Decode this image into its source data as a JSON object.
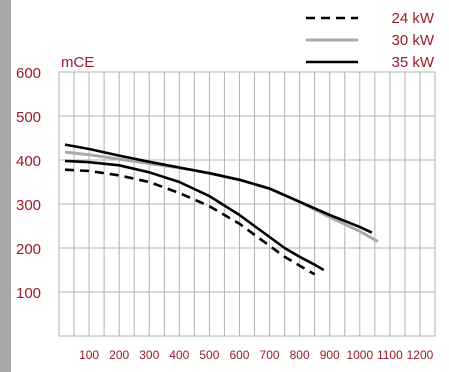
{
  "chart_data": {
    "type": "line",
    "title": "",
    "xlabel": "",
    "ylabel": "mCE",
    "xlim": [
      0,
      1250
    ],
    "ylim": [
      0,
      600
    ],
    "x_ticks": [
      100,
      200,
      300,
      400,
      500,
      600,
      700,
      800,
      900,
      1000,
      1100,
      1200
    ],
    "y_ticks": [
      100,
      200,
      300,
      400,
      500,
      600
    ],
    "grid": true,
    "legend_position": "top-right",
    "series": [
      {
        "name": "24 kW",
        "style": "dashed",
        "color": "#000000",
        "x": [
          20,
          100,
          200,
          300,
          400,
          500,
          600,
          650,
          700,
          750,
          800,
          850
        ],
        "y": [
          378,
          375,
          365,
          350,
          325,
          295,
          255,
          230,
          205,
          180,
          160,
          140
        ]
      },
      {
        "name": "30 kW",
        "style": "solid",
        "color": "#a9a9a9",
        "x": [
          20,
          100,
          200,
          300,
          400,
          500,
          600,
          700,
          800,
          900,
          1000,
          1060
        ],
        "y": [
          418,
          412,
          402,
          392,
          382,
          370,
          355,
          335,
          305,
          270,
          238,
          215
        ]
      },
      {
        "name": "35 kW",
        "style": "solid",
        "color": "#000000",
        "x": [
          20,
          100,
          200,
          300,
          400,
          500,
          600,
          700,
          800,
          900,
          1000,
          1040
        ],
        "y": [
          435,
          425,
          410,
          396,
          383,
          370,
          355,
          335,
          305,
          275,
          248,
          235
        ]
      },
      {
        "name": "",
        "style": "solid",
        "color": "#000000",
        "x": [
          20,
          100,
          200,
          300,
          400,
          500,
          600,
          650,
          700,
          750,
          800,
          850,
          880
        ],
        "y": [
          398,
          395,
          388,
          372,
          350,
          318,
          275,
          250,
          225,
          200,
          180,
          162,
          150
        ]
      }
    ]
  },
  "colors": {
    "accent": "#9b1b2a",
    "grid": "#b3b3b3",
    "strip": "#a7a7a7"
  }
}
